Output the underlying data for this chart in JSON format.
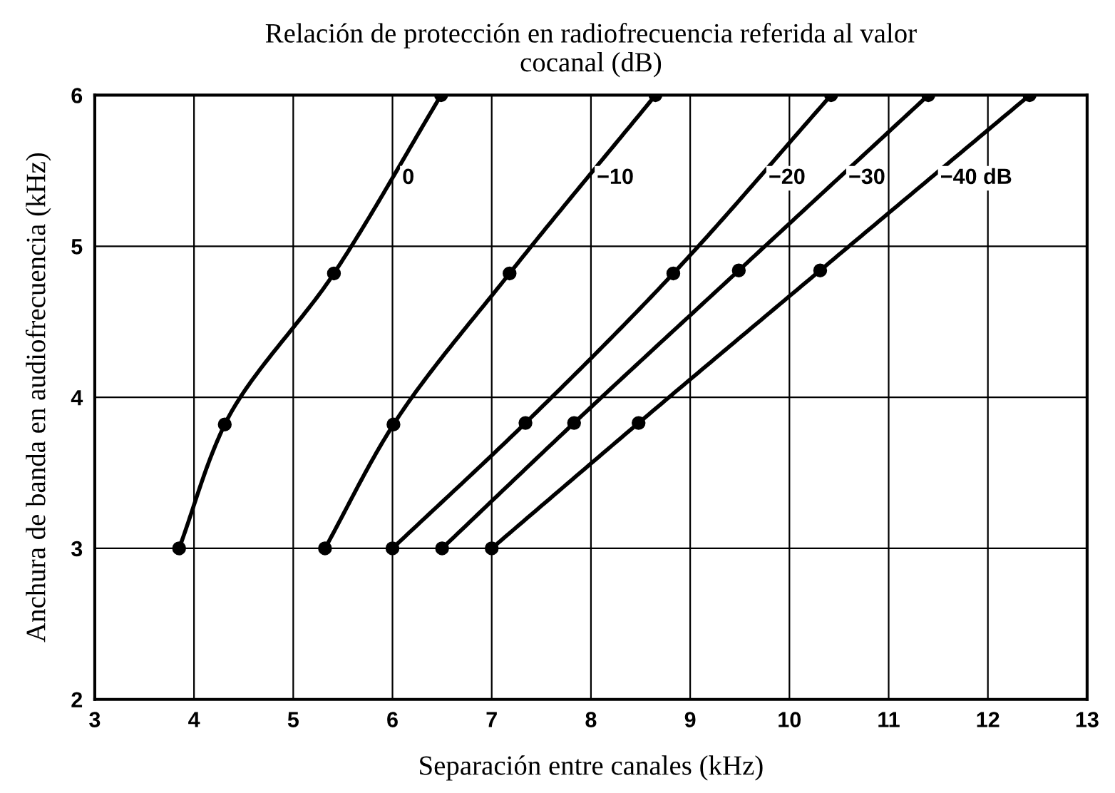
{
  "chart_data": {
    "type": "line",
    "title": "Relación de protección en radiofrecuencia referida al valor\ncocanal (dB)",
    "xlabel": "Separación entre canales (kHz)",
    "ylabel": "Anchura de banda en audiofrecuencia (kHz)",
    "series": [
      {
        "name": "0",
        "color": "#000000",
        "x": [
          3.85,
          4.31,
          5.41,
          6.49
        ],
        "values": [
          3,
          3.82,
          4.82,
          6
        ]
      },
      {
        "name": "−10",
        "color": "#000000",
        "x": [
          5.32,
          6.01,
          7.18,
          8.65
        ],
        "values": [
          3,
          3.82,
          4.82,
          6
        ]
      },
      {
        "name": "−20",
        "color": "#000000",
        "x": [
          6.0,
          7.34,
          8.83,
          10.42
        ],
        "values": [
          3,
          3.83,
          4.82,
          6
        ]
      },
      {
        "name": "−30",
        "color": "#000000",
        "x": [
          6.5,
          7.83,
          9.49,
          11.4
        ],
        "values": [
          3,
          3.83,
          4.84,
          6
        ]
      },
      {
        "name": "−40 dB",
        "color": "#000000",
        "x": [
          7.0,
          8.48,
          10.31,
          12.42
        ],
        "values": [
          3,
          3.83,
          4.84,
          6
        ]
      }
    ],
    "xlim": [
      3,
      13
    ],
    "ylim": [
      2,
      6
    ],
    "xticks": [
      3,
      4,
      5,
      6,
      7,
      8,
      9,
      10,
      11,
      12,
      13
    ],
    "yticks": [
      2,
      3,
      4,
      5,
      6
    ],
    "grid": true,
    "marker": "circle",
    "line_style": "solid"
  }
}
